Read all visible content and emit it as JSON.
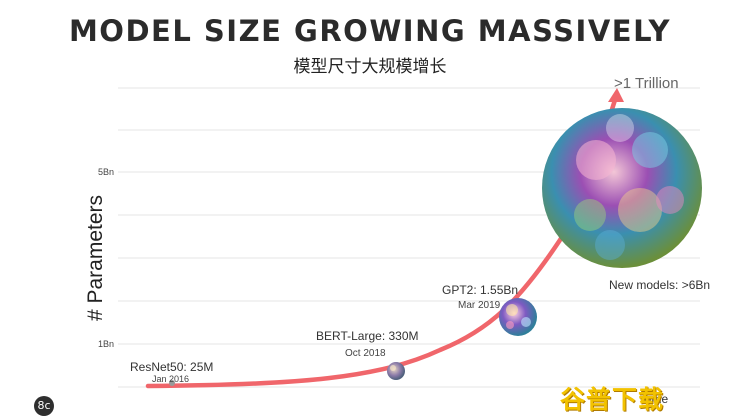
{
  "title": "MODEL SIZE GROWING MASSIVELY",
  "subtitle": "模型尺寸大规模增长",
  "watermark": "谷普下载",
  "logo": "8c",
  "colors": {
    "curve": "#f0666b",
    "text": "#2b2b2b",
    "grid": "#e4e4e4"
  },
  "chart_data": {
    "type": "line",
    "title": "MODEL SIZE GROWING MASSIVELY",
    "xlabel": "Time",
    "ylabel": "# Parameters",
    "y_ticks": [
      "5Bn",
      "1Bn"
    ],
    "grid": true,
    "points": [
      {
        "model": "ResNet50",
        "label": "ResNet50: 25M",
        "date": "Jan 2016"
      },
      {
        "model": "BERT-Large",
        "label": "BERT-Large: 330M",
        "date": "Oct 2018"
      },
      {
        "model": "GPT2",
        "label": "GPT2: 1.55Bn",
        "date": "Mar 2019"
      },
      {
        "model": "New models",
        "label": "New models: >6Bn",
        "date": ""
      }
    ],
    "arrow_label": ">1 Trillion"
  }
}
